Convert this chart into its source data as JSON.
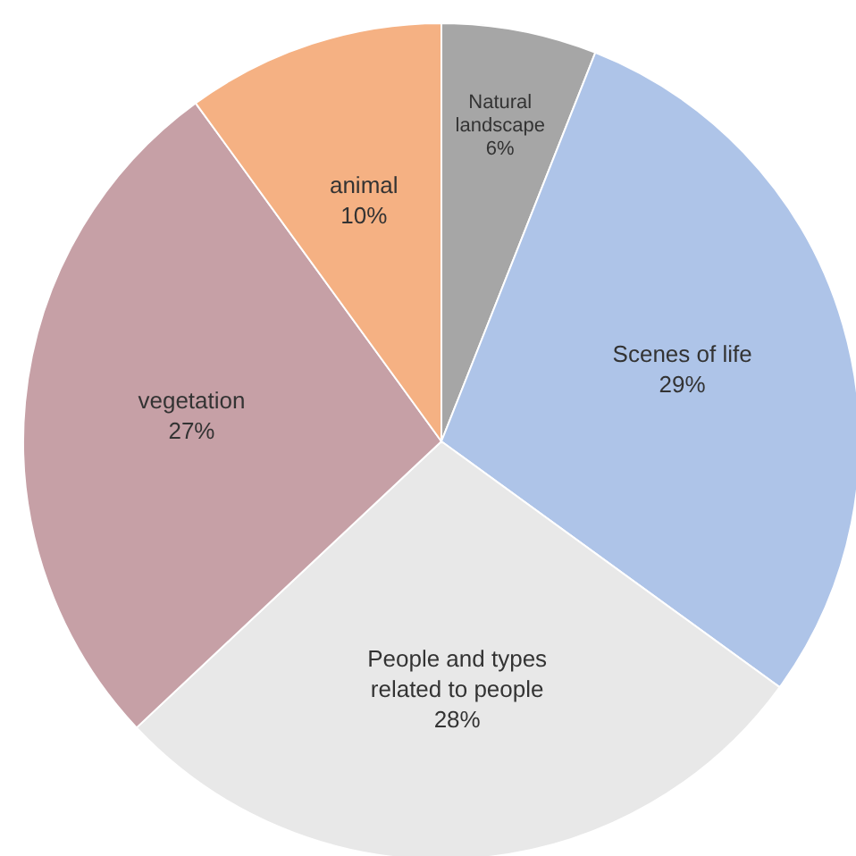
{
  "chart_data": {
    "type": "pie",
    "categories": [
      "Natural landscape",
      "Scenes of life",
      "People and types related to people",
      "vegetation",
      "animal"
    ],
    "values": [
      6,
      29,
      28,
      27,
      10
    ],
    "colors": [
      "#a6a6a6",
      "#aec4e8",
      "#e8e8e8",
      "#c6a0a6",
      "#f5b183"
    ],
    "value_labels": [
      "6%",
      "29%",
      "28%",
      "27%",
      "10%"
    ]
  }
}
